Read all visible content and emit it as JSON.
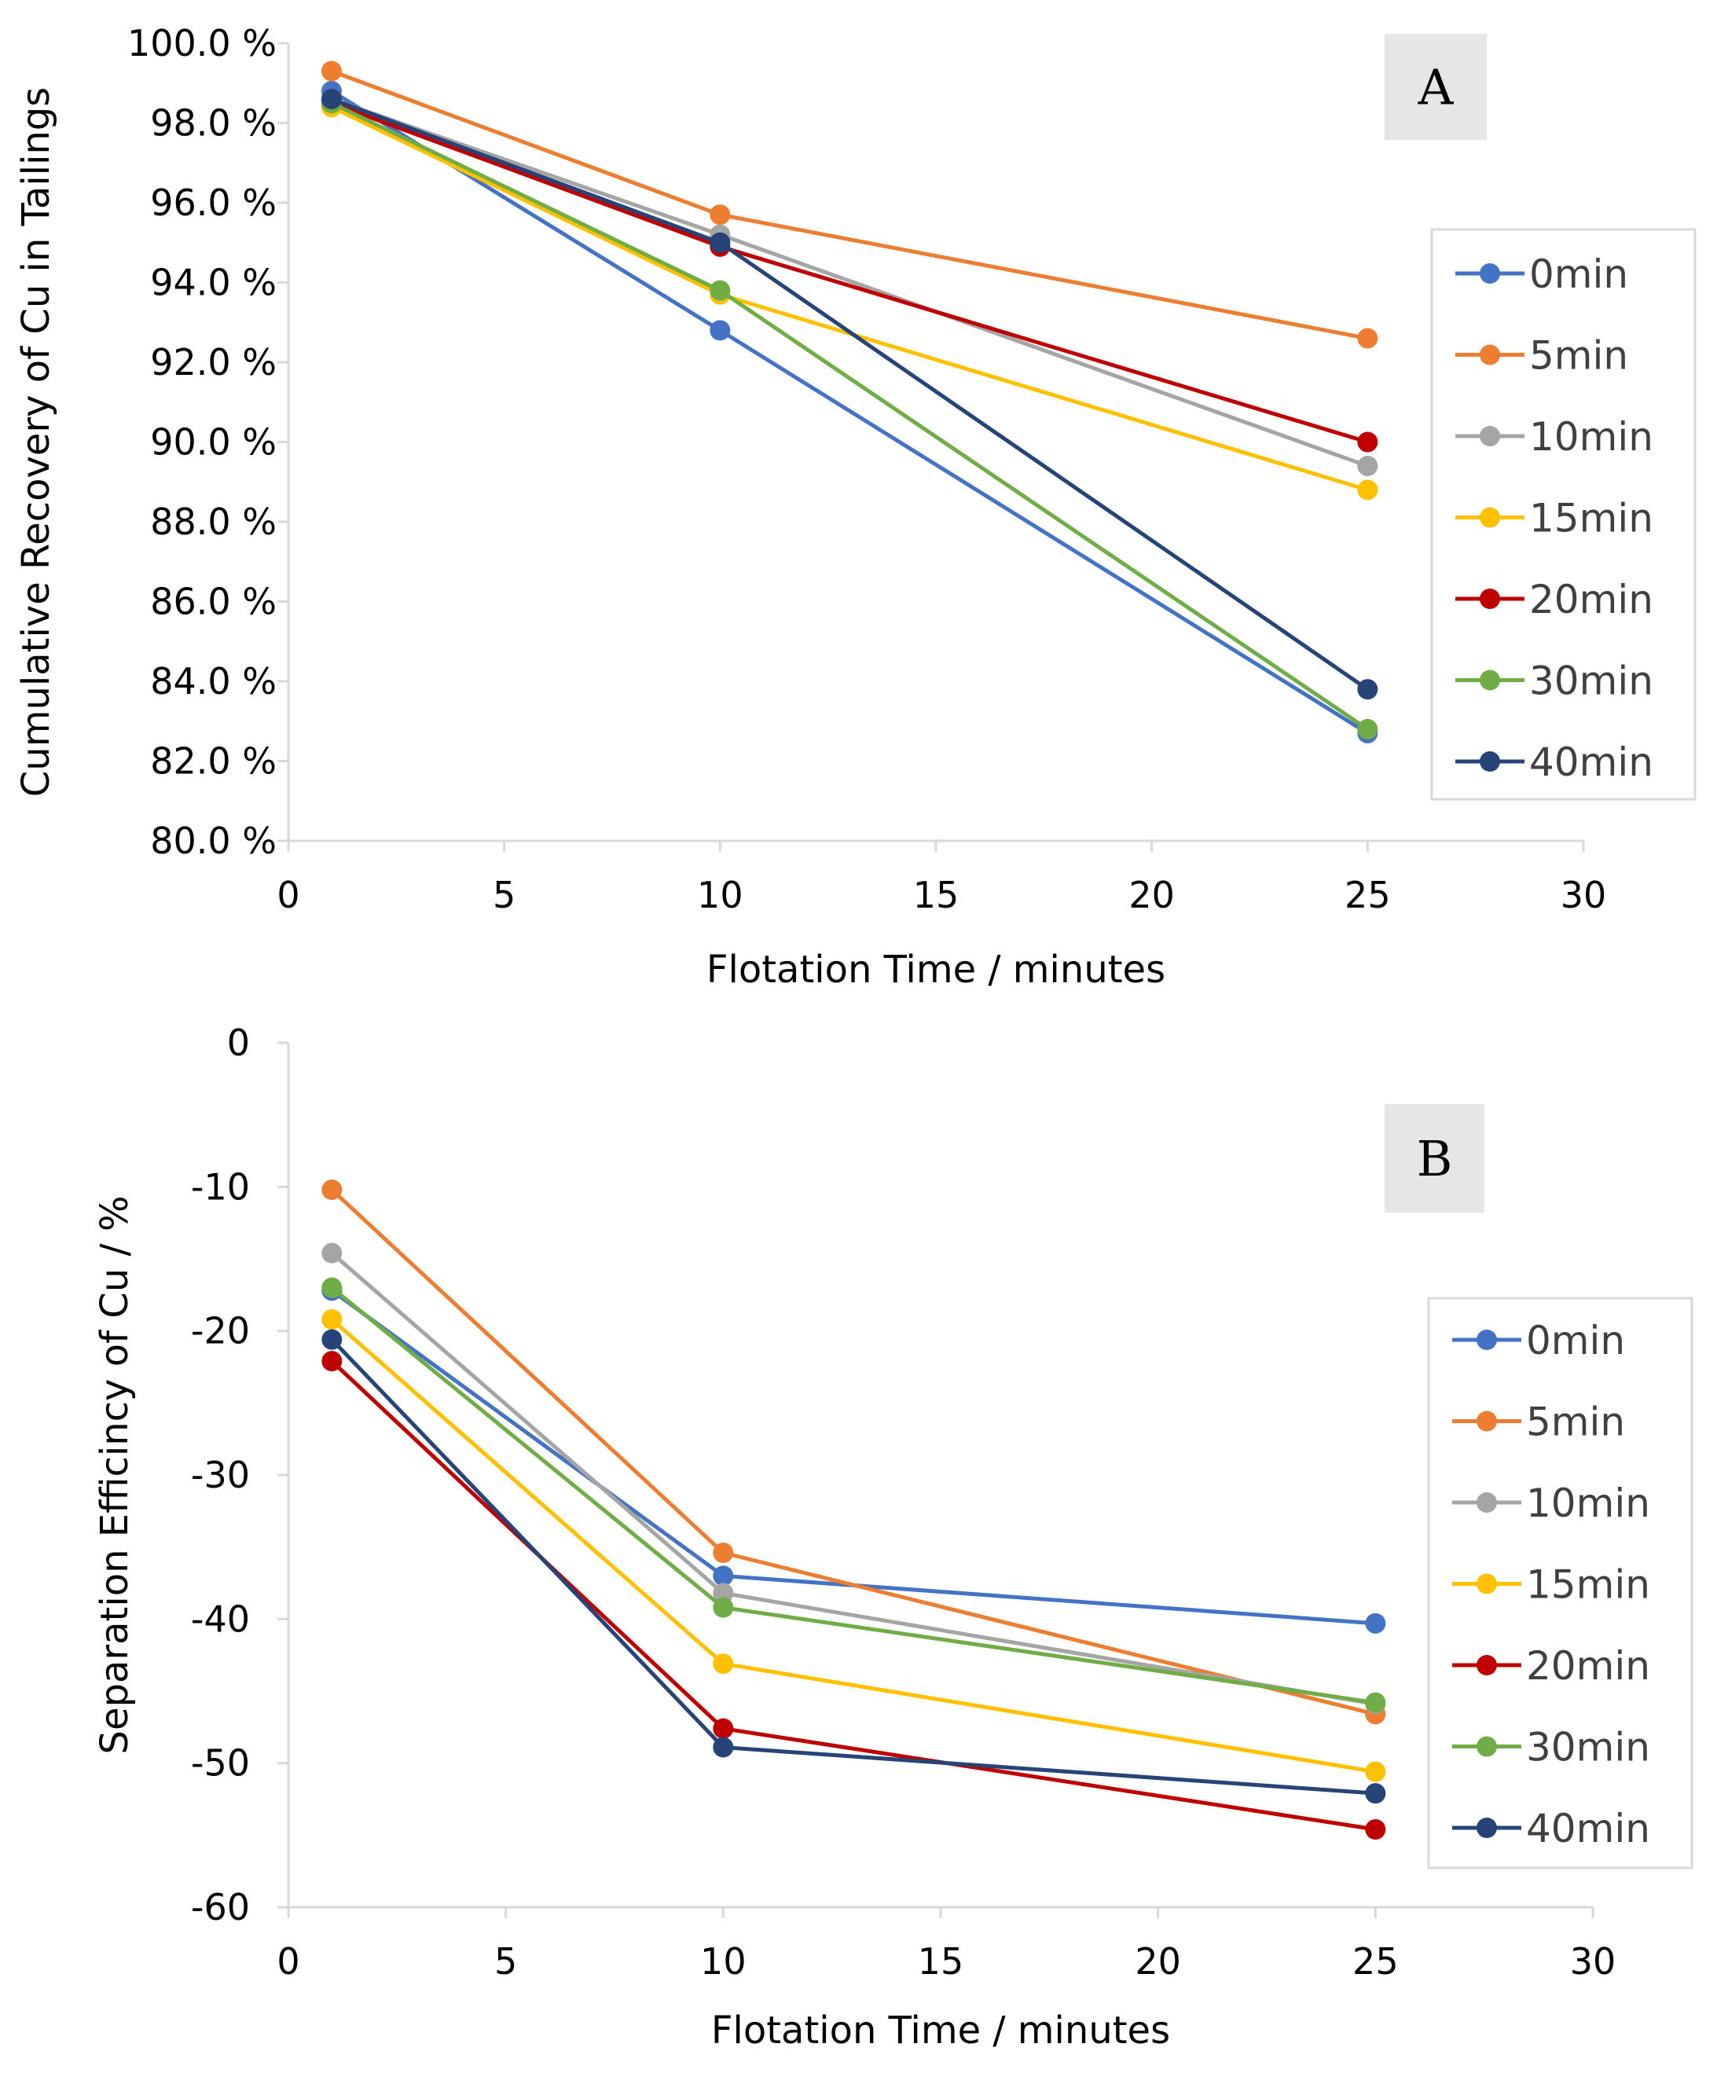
{
  "chart_data": [
    {
      "type": "line",
      "panel_label": "A",
      "title": "",
      "xlabel": "Flotation Time / minutes",
      "ylabel": "Cumulative Recovery of Cu in Tailings",
      "xlim": [
        0,
        30
      ],
      "ylim": [
        80,
        100
      ],
      "x_ticks": [
        "0",
        "5",
        "10",
        "15",
        "20",
        "25",
        "30"
      ],
      "y_ticks": [
        "80.0 %",
        "82.0 %",
        "84.0 %",
        "86.0 %",
        "88.0 %",
        "90.0 %",
        "92.0 %",
        "94.0 %",
        "96.0 %",
        "98.0 %",
        "100.0 %"
      ],
      "grid": false,
      "legend_position": "right",
      "x": [
        1,
        10,
        25
      ],
      "series": [
        {
          "name": "0min",
          "color": "#4472C4",
          "values": [
            98.8,
            92.8,
            82.7
          ]
        },
        {
          "name": "5min",
          "color": "#ED7D31",
          "values": [
            99.3,
            95.7,
            92.6
          ]
        },
        {
          "name": "10min",
          "color": "#A5A5A5",
          "values": [
            98.6,
            95.2,
            89.4
          ]
        },
        {
          "name": "15min",
          "color": "#FFC000",
          "values": [
            98.4,
            93.7,
            88.8
          ]
        },
        {
          "name": "20min",
          "color": "#C00000",
          "values": [
            98.5,
            94.9,
            90.0
          ]
        },
        {
          "name": "30min",
          "color": "#70AD47",
          "values": [
            98.5,
            93.8,
            82.8
          ]
        },
        {
          "name": "40min",
          "color": "#264478",
          "values": [
            98.6,
            95.0,
            83.8
          ]
        }
      ]
    },
    {
      "type": "line",
      "panel_label": "B",
      "title": "",
      "xlabel": "Flotation Time / minutes",
      "ylabel": "Separation Efficincy of Cu / %",
      "xlim": [
        0,
        30
      ],
      "ylim": [
        -60,
        0
      ],
      "x_ticks": [
        "0",
        "5",
        "10",
        "15",
        "20",
        "25",
        "30"
      ],
      "y_ticks": [
        "-60",
        "-50",
        "-40",
        "-30",
        "-20",
        "-10",
        "0"
      ],
      "grid": false,
      "legend_position": "right",
      "x": [
        1,
        10,
        25
      ],
      "series": [
        {
          "name": "0min",
          "color": "#4472C4",
          "values": [
            -17.2,
            -37.0,
            -40.3
          ]
        },
        {
          "name": "5min",
          "color": "#ED7D31",
          "values": [
            -10.2,
            -35.4,
            -46.6
          ]
        },
        {
          "name": "10min",
          "color": "#A5A5A5",
          "values": [
            -14.6,
            -38.2,
            -45.9
          ]
        },
        {
          "name": "15min",
          "color": "#FFC000",
          "values": [
            -19.2,
            -43.1,
            -50.6
          ]
        },
        {
          "name": "20min",
          "color": "#C00000",
          "values": [
            -22.1,
            -47.6,
            -54.6
          ]
        },
        {
          "name": "30min",
          "color": "#70AD47",
          "values": [
            -17.0,
            -39.2,
            -45.8
          ]
        },
        {
          "name": "40min",
          "color": "#264478",
          "values": [
            -20.6,
            -48.9,
            -52.1
          ]
        }
      ]
    }
  ]
}
